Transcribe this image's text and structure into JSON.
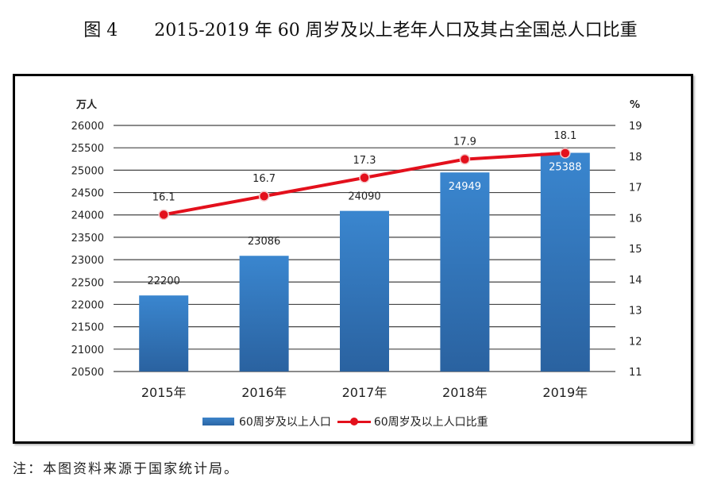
{
  "figure": {
    "number_label": "图 4",
    "title": "2015-2019 年 60 周岁及以上老年人口及其占全国总人口比重",
    "note": "注：本图资料来源于国家统计局。"
  },
  "chart_data": {
    "type": "bar+line",
    "title": "2015-2019 年 60 周岁及以上老年人口及其占全国总人口比重",
    "categories": [
      "2015年",
      "2016年",
      "2017年",
      "2018年",
      "2019年"
    ],
    "series": [
      {
        "name": "60周岁及以上人口",
        "type": "bar",
        "axis": "left",
        "values": [
          22200,
          23086,
          24090,
          24949,
          25388
        ],
        "data_labels": [
          "22200",
          "23086",
          "24090",
          "24949",
          "25388"
        ],
        "color": "#2f73b8"
      },
      {
        "name": "60周岁及以上人口比重",
        "type": "line",
        "axis": "right",
        "values": [
          16.1,
          16.7,
          17.3,
          17.9,
          18.1
        ],
        "data_labels": [
          "16.1",
          "16.7",
          "17.3",
          "17.9",
          "18.1"
        ],
        "color": "#e3101c"
      }
    ],
    "left_axis": {
      "unit_label": "万人",
      "range": [
        20500,
        26000
      ],
      "ticks": [
        "20500",
        "21000",
        "21500",
        "22000",
        "22500",
        "23000",
        "23500",
        "24000",
        "24500",
        "25000",
        "25500",
        "26000"
      ]
    },
    "right_axis": {
      "unit_label": "%",
      "range": [
        11,
        19
      ],
      "ticks": [
        "11",
        "12",
        "13",
        "14",
        "15",
        "16",
        "17",
        "18",
        "19"
      ]
    },
    "grid": true,
    "legend_position": "bottom"
  }
}
